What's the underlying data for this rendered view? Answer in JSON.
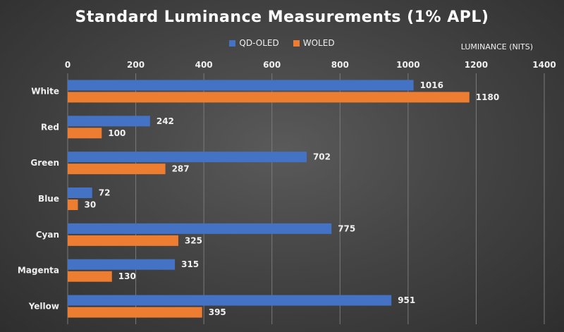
{
  "chart_data": {
    "type": "bar",
    "orientation": "horizontal",
    "title": "Standard Luminance Measurements (1% APL)",
    "xlabel": "LUMINANCE (NITS)",
    "ylabel": "",
    "xlim": [
      0,
      1400
    ],
    "xticks": [
      0,
      200,
      400,
      600,
      800,
      1000,
      1200,
      1400
    ],
    "grid": true,
    "legend_position": "top-center",
    "categories": [
      "White",
      "Red",
      "Green",
      "Blue",
      "Cyan",
      "Magenta",
      "Yellow"
    ],
    "series": [
      {
        "name": "QD-OLED",
        "color": "#4472c4",
        "values": [
          1016,
          242,
          702,
          72,
          775,
          315,
          951
        ]
      },
      {
        "name": "WOLED",
        "color": "#ed7d31",
        "values": [
          1180,
          100,
          287,
          30,
          325,
          130,
          395
        ]
      }
    ]
  }
}
